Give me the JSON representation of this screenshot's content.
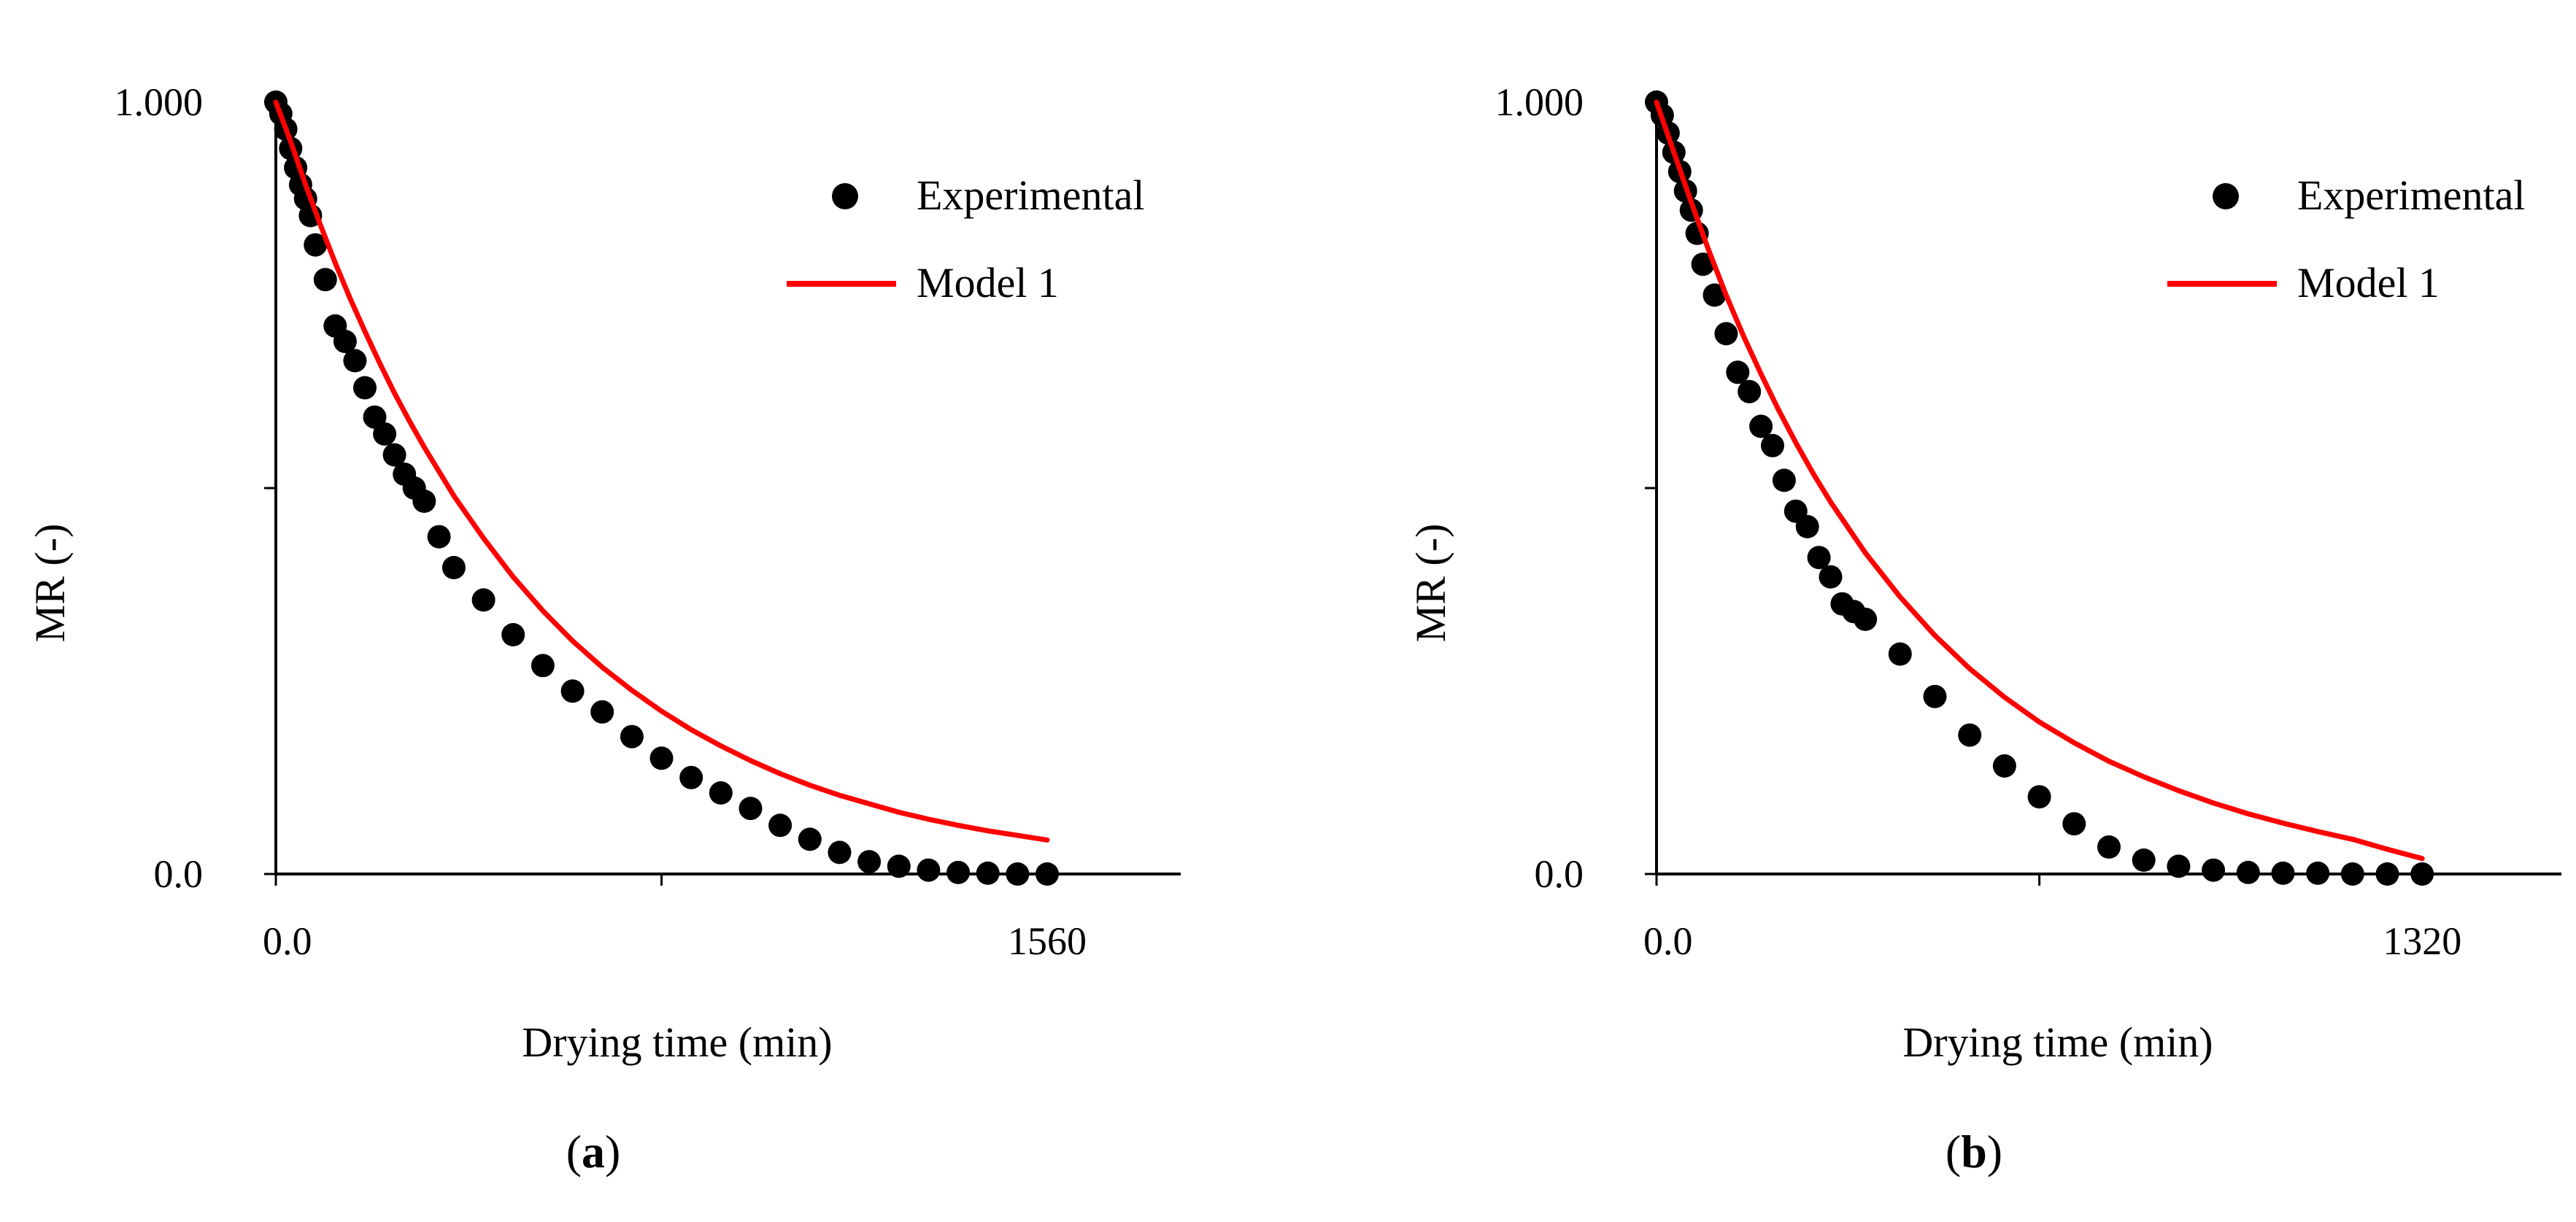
{
  "colors": {
    "experimental": "#000000",
    "model": "#ff0000",
    "axis": "#000000",
    "background": "#ffffff"
  },
  "chart_data": [
    {
      "type": "scatter",
      "panel_label_open": "(",
      "panel_label_letter": "a",
      "panel_label_close": ")",
      "xlabel": "Drying time (min)",
      "ylabel": "MR (-)",
      "xlim": [
        0,
        1830
      ],
      "ylim": [
        0,
        1
      ],
      "x_ticks": [
        0,
        780,
        1560
      ],
      "x_tick_labels": [
        "0.0",
        "",
        "1560"
      ],
      "y_ticks": [
        0,
        0.5,
        1
      ],
      "y_tick_labels": [
        "0.0",
        "",
        "1.000"
      ],
      "legend": {
        "position": "top-right",
        "entries": [
          "Experimental",
          "Model 1"
        ]
      },
      "series": [
        {
          "name": "Experimental",
          "style": "markers",
          "x": [
            0,
            10,
            20,
            30,
            40,
            50,
            60,
            70,
            80,
            100,
            120,
            140,
            160,
            180,
            200,
            220,
            240,
            260,
            280,
            300,
            330,
            360,
            420,
            480,
            540,
            600,
            660,
            720,
            780,
            840,
            900,
            960,
            1020,
            1080,
            1140,
            1200,
            1260,
            1320,
            1380,
            1440,
            1500,
            1560
          ],
          "y": [
            1.0,
            0.985,
            0.965,
            0.94,
            0.915,
            0.893,
            0.875,
            0.853,
            0.815,
            0.77,
            0.71,
            0.69,
            0.665,
            0.63,
            0.592,
            0.57,
            0.543,
            0.518,
            0.5,
            0.483,
            0.437,
            0.397,
            0.355,
            0.31,
            0.27,
            0.237,
            0.21,
            0.178,
            0.15,
            0.125,
            0.105,
            0.085,
            0.063,
            0.045,
            0.028,
            0.016,
            0.01,
            0.005,
            0.002,
            0.001,
            0.0,
            0.0
          ]
        },
        {
          "name": "Model 1",
          "style": "line",
          "x": [
            0,
            30,
            60,
            90,
            120,
            150,
            180,
            210,
            240,
            270,
            300,
            360,
            420,
            480,
            540,
            600,
            660,
            720,
            780,
            840,
            900,
            960,
            1020,
            1080,
            1140,
            1200,
            1260,
            1320,
            1380,
            1440,
            1500,
            1560
          ],
          "y": [
            1.0,
            0.949,
            0.893,
            0.841,
            0.792,
            0.746,
            0.703,
            0.662,
            0.623,
            0.587,
            0.553,
            0.49,
            0.435,
            0.385,
            0.341,
            0.302,
            0.268,
            0.238,
            0.211,
            0.187,
            0.166,
            0.147,
            0.13,
            0.115,
            0.102,
            0.091,
            0.08,
            0.071,
            0.063,
            0.056,
            0.05,
            0.044
          ]
        }
      ]
    },
    {
      "type": "scatter",
      "panel_label_open": "(",
      "panel_label_letter": "b",
      "panel_label_close": ")",
      "xlabel": "Drying time (min)",
      "ylabel": "MR (-)",
      "xlim": [
        0,
        1560
      ],
      "ylim": [
        0,
        1
      ],
      "x_ticks": [
        0,
        660,
        1320
      ],
      "x_tick_labels": [
        "0.0",
        "",
        "1320"
      ],
      "y_ticks": [
        0,
        0.5,
        1
      ],
      "y_tick_labels": [
        "0.0",
        "",
        "1.000"
      ],
      "legend": {
        "position": "top-right",
        "entries": [
          "Experimental",
          "Model 1"
        ]
      },
      "series": [
        {
          "name": "Experimental",
          "style": "markers",
          "x": [
            0,
            10,
            20,
            30,
            40,
            50,
            60,
            70,
            80,
            100,
            120,
            140,
            160,
            180,
            200,
            220,
            240,
            260,
            280,
            300,
            320,
            340,
            360,
            420,
            480,
            540,
            600,
            660,
            720,
            780,
            840,
            900,
            960,
            1020,
            1080,
            1140,
            1200,
            1260,
            1320
          ],
          "y": [
            1.0,
            0.983,
            0.96,
            0.935,
            0.91,
            0.885,
            0.86,
            0.83,
            0.79,
            0.75,
            0.7,
            0.65,
            0.625,
            0.58,
            0.555,
            0.51,
            0.47,
            0.45,
            0.41,
            0.385,
            0.35,
            0.34,
            0.33,
            0.285,
            0.23,
            0.18,
            0.14,
            0.1,
            0.065,
            0.035,
            0.018,
            0.01,
            0.005,
            0.002,
            0.001,
            0.001,
            0.0,
            0.0,
            0.0
          ]
        },
        {
          "name": "Model 1",
          "style": "line",
          "x": [
            0,
            30,
            60,
            90,
            120,
            150,
            180,
            210,
            240,
            270,
            300,
            360,
            420,
            480,
            540,
            600,
            660,
            720,
            780,
            840,
            900,
            960,
            1020,
            1080,
            1140,
            1200,
            1260,
            1320
          ],
          "y": [
            1.0,
            0.935,
            0.87,
            0.808,
            0.75,
            0.697,
            0.648,
            0.602,
            0.559,
            0.519,
            0.482,
            0.416,
            0.359,
            0.309,
            0.266,
            0.229,
            0.197,
            0.17,
            0.146,
            0.126,
            0.108,
            0.092,
            0.078,
            0.066,
            0.055,
            0.045,
            0.032,
            0.02
          ]
        }
      ]
    }
  ]
}
